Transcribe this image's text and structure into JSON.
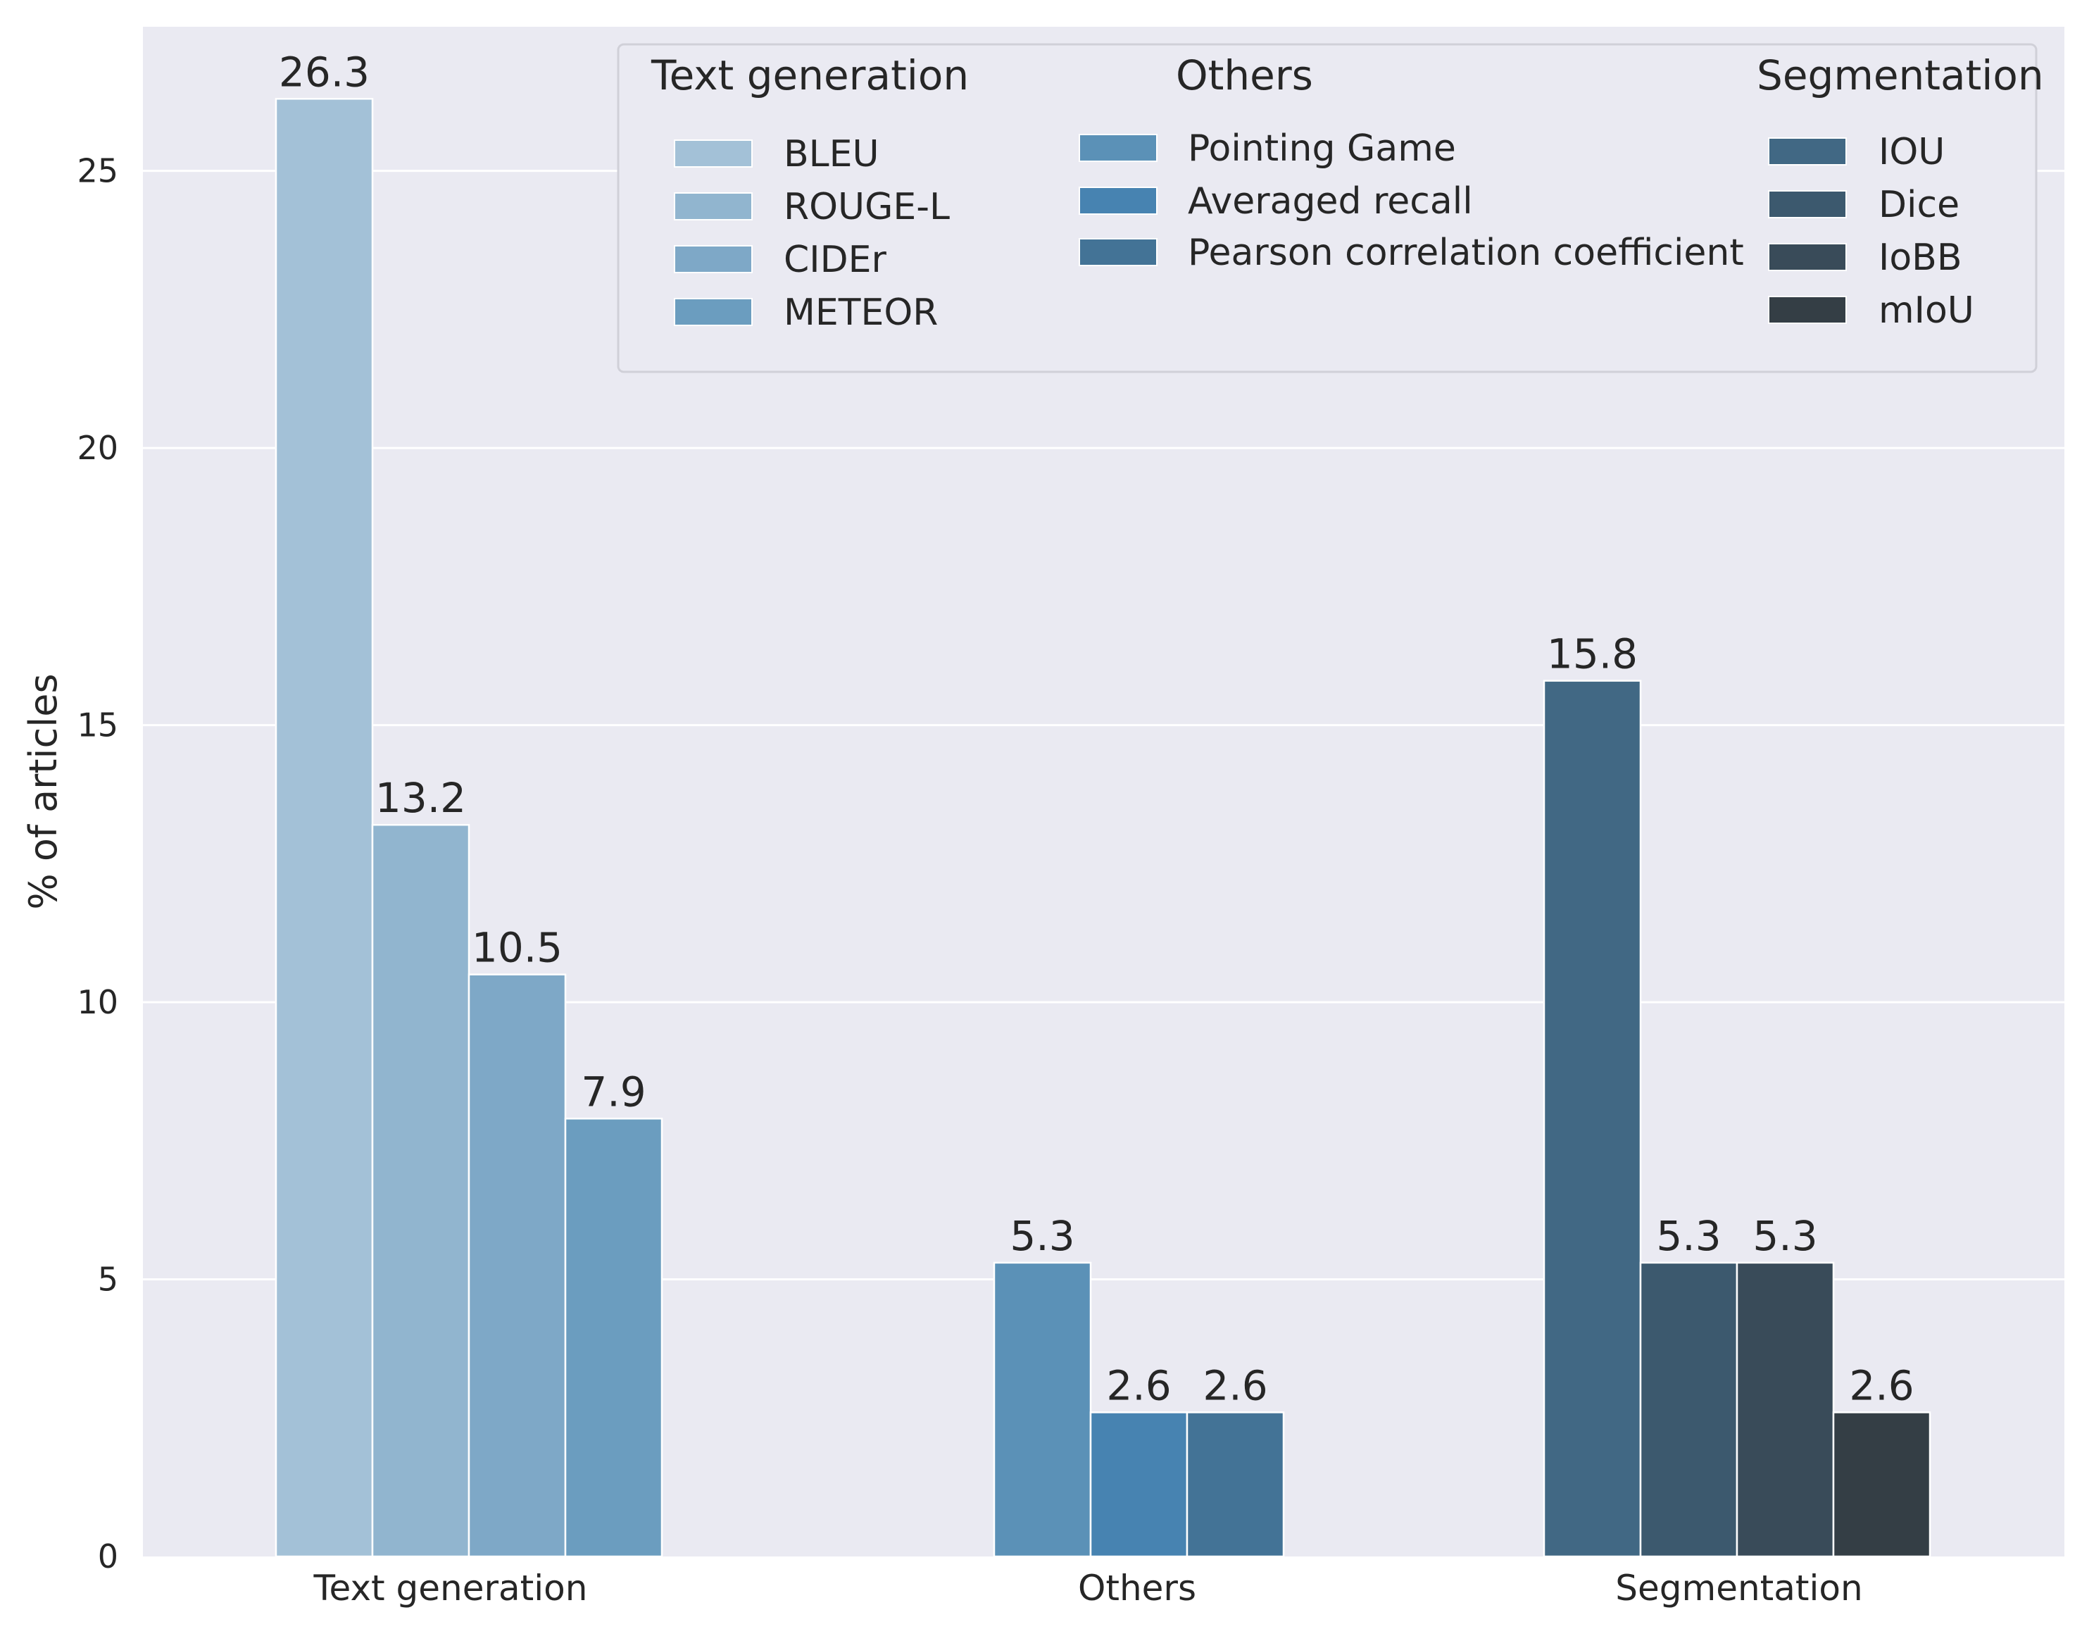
{
  "chart_data": {
    "type": "bar",
    "categories": [
      "Text generation",
      "Others",
      "Segmentation"
    ],
    "ylabel": "% of articles",
    "xlabel": "",
    "ylim": [
      0,
      27.6
    ],
    "yticks": [
      0,
      5,
      10,
      15,
      20,
      25
    ],
    "grid": true,
    "groups": [
      {
        "category": "Text generation",
        "series": [
          {
            "name": "BLEU",
            "value": 26.3,
            "label": "26.3",
            "color": "#a3c1d7"
          },
          {
            "name": "ROUGE-L",
            "value": 13.2,
            "label": "13.2",
            "color": "#91b5cf"
          },
          {
            "name": "CIDEr",
            "value": 10.5,
            "label": "10.5",
            "color": "#7ea8c7"
          },
          {
            "name": "METEOR",
            "value": 7.9,
            "label": "7.9",
            "color": "#6b9dbf"
          }
        ]
      },
      {
        "category": "Others",
        "series": [
          {
            "name": "Pointing Game",
            "value": 5.3,
            "label": "5.3",
            "color": "#5b91b7"
          },
          {
            "name": "Averaged recall",
            "value": 2.6,
            "label": "2.6",
            "color": "#4783b1"
          },
          {
            "name": "Pearson correlation coefficient",
            "value": 2.6,
            "label": "2.6",
            "color": "#437396"
          }
        ]
      },
      {
        "category": "Segmentation",
        "series": [
          {
            "name": "IOU",
            "value": 15.8,
            "label": "15.8",
            "color": "#416884"
          },
          {
            "name": "Dice",
            "value": 5.3,
            "label": "5.3",
            "color": "#3c596e"
          },
          {
            "name": "IoBB",
            "value": 5.3,
            "label": "5.3",
            "color": "#394b59"
          },
          {
            "name": "mIoU",
            "value": 2.6,
            "label": "2.6",
            "color": "#343e45"
          }
        ]
      }
    ],
    "legend": {
      "placement": "top-right",
      "columns": [
        {
          "title": "Text generation",
          "entries": [
            "BLEU",
            "ROUGE-L",
            "CIDEr",
            "METEOR"
          ]
        },
        {
          "title": "Others",
          "entries": [
            "Pointing Game",
            "Averaged recall",
            "Pearson correlation coefficient"
          ]
        },
        {
          "title": "Segmentation",
          "entries": [
            "IOU",
            "Dice",
            "IoBB",
            "mIoU"
          ]
        }
      ]
    },
    "colors": {
      "background": "#eaeaf2",
      "grid": "#ffffff",
      "text": "#262626"
    }
  }
}
